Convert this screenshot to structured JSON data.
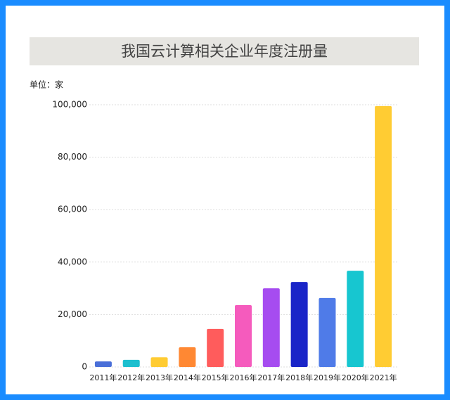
{
  "chart_data": {
    "type": "bar",
    "title": "我国云计算相关企业年度注册量",
    "unit_label": "单位：家",
    "categories": [
      "2011年",
      "2012年",
      "2013年",
      "2014年",
      "2015年",
      "2016年",
      "2017年",
      "2018年",
      "2019年",
      "2020年",
      "2021年"
    ],
    "values": [
      2100,
      2700,
      3700,
      7500,
      14500,
      23600,
      30000,
      32400,
      26300,
      36700,
      99500
    ],
    "colors": [
      "#4a6fd8",
      "#1cbfcf",
      "#ffcc33",
      "#ff8833",
      "#ff5c5c",
      "#f55bbd",
      "#a64cf0",
      "#1a25c8",
      "#4f7be8",
      "#17c6d0",
      "#ffcc33"
    ],
    "ylim": [
      0,
      100000
    ],
    "yticks": [
      0,
      {
        "value": 20000,
        "label": "20,000"
      },
      {
        "value": 40000,
        "label": "40,000"
      },
      {
        "value": 60000,
        "label": "60,000"
      },
      {
        "value": 80000,
        "label": "80,000"
      },
      {
        "value": 100000,
        "label": "100,000"
      }
    ],
    "grid": true
  }
}
